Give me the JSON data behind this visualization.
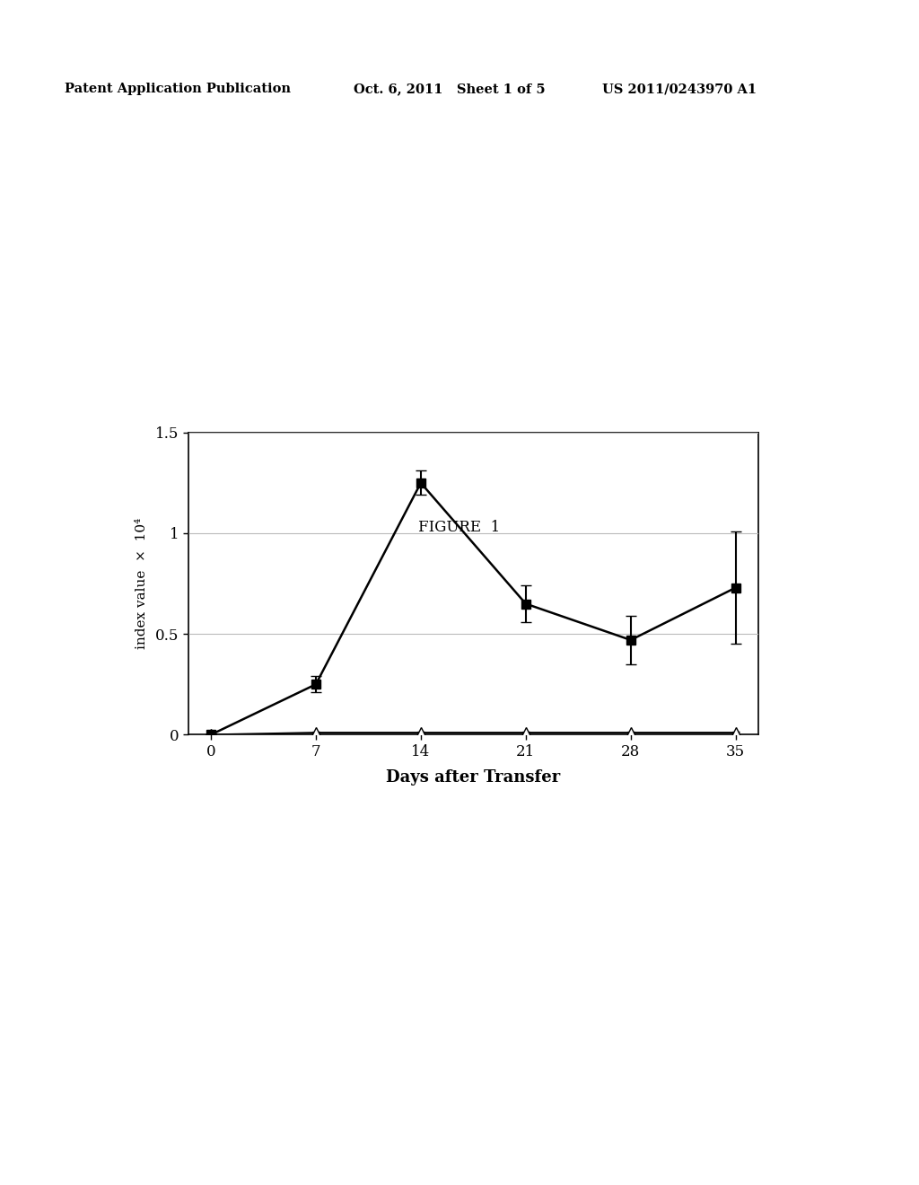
{
  "title": "FIGURE  1",
  "header_left": "Patent Application Publication",
  "header_mid": "Oct. 6, 2011   Sheet 1 of 5",
  "header_right": "US 2011/0243970 A1",
  "xlabel": "Days after Transfer",
  "ylabel": "index value  ×  10⁴",
  "x_ticks": [
    0,
    7,
    14,
    21,
    28,
    35
  ],
  "ylim": [
    0,
    1.5
  ],
  "yticks": [
    0,
    0.5,
    1.0,
    1.5
  ],
  "series1_x": [
    0,
    7,
    14,
    21,
    28,
    35
  ],
  "series1_y": [
    0.0,
    0.25,
    1.25,
    0.65,
    0.47,
    0.73
  ],
  "series1_yerr": [
    0.0,
    0.04,
    0.06,
    0.09,
    0.12,
    0.28
  ],
  "series2_x": [
    0,
    7,
    14,
    21,
    28,
    35
  ],
  "series2_y": [
    0.0,
    0.01,
    0.01,
    0.01,
    0.01,
    0.01
  ],
  "series2_yerr": [
    0.0,
    0.003,
    0.003,
    0.003,
    0.003,
    0.003
  ],
  "background_color": "#ffffff",
  "line_color": "#000000",
  "grid_color": "#bbbbbb"
}
